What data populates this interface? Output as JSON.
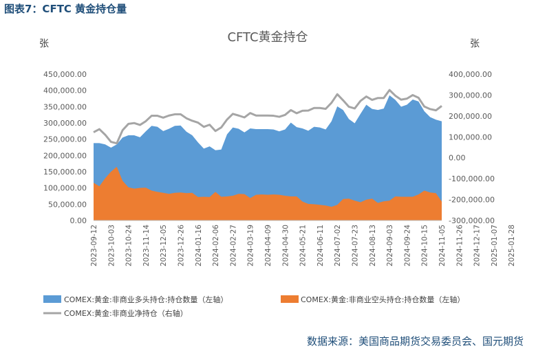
{
  "header": "图表7：CFTC 黄金持仓量",
  "source": "数据来源：美国商品期货交易委员会、国元期货",
  "chart_data": {
    "type": "area",
    "title": "CFTC黄金持仓",
    "left_unit": "张",
    "right_unit": "张",
    "y_left_ticks": [
      "450,000.00",
      "400,000.00",
      "350,000.00",
      "300,000.00",
      "250,000.00",
      "200,000.00",
      "150,000.00",
      "100,000.00",
      "50,000.00",
      "0.00"
    ],
    "y_right_ticks": [
      "400,000.00",
      "300,000.00",
      "200,000.00",
      "100,000.00",
      "0.00",
      "-100,000.00",
      "-200,000.00",
      "-300,000.00"
    ],
    "ylim_left": [
      0,
      450000
    ],
    "ylim_right": [
      -300000,
      400000
    ],
    "x_tick_labels": [
      "2023-09-12",
      "2023-10-03",
      "2023-10-24",
      "2023-11-14",
      "2023-12-05",
      "2023-12-26",
      "2024-01-16",
      "2024-02-06",
      "2024-02-27",
      "2024-03-19",
      "2024-04-09",
      "2024-04-30",
      "2024-05-21",
      "2024-06-11",
      "2024-07-02",
      "2024-07-23",
      "2024-08-13",
      "2024-09-03",
      "2024-09-24",
      "2024-10-15",
      "2024-11-05",
      "2024-11-26",
      "2024-12-17",
      "2025-01-07",
      "2025-01-28"
    ],
    "legend": [
      "COMEX:黄金:非商业多头持仓:持仓数量（左轴）",
      "COMEX:黄金:非商业空头持仓:持仓数量（左轴）",
      "COMEX:黄金:非商业净持仓（右轴）"
    ],
    "colors": {
      "long": "#5b9bd5",
      "short": "#ed7d31",
      "net": "#a5a5a5"
    },
    "series": [
      {
        "name": "COMEX:黄金:非商业多头持仓:持仓数量（左轴）",
        "axis": "left",
        "values": [
          238000,
          238000,
          234000,
          224000,
          234000,
          255000,
          262000,
          262000,
          256000,
          274000,
          291000,
          288000,
          275000,
          282000,
          291000,
          292000,
          273000,
          262000,
          240000,
          221000,
          228000,
          216000,
          218000,
          265000,
          286000,
          282000,
          271000,
          283000,
          281000,
          281000,
          281000,
          280000,
          274000,
          280000,
          301000,
          287000,
          283000,
          276000,
          288000,
          286000,
          280000,
          305000,
          351000,
          340000,
          312000,
          299000,
          328000,
          356000,
          343000,
          340000,
          344000,
          385000,
          371000,
          350000,
          356000,
          372000,
          366000,
          336000,
          318000,
          310000,
          305000
        ]
      },
      {
        "name": "COMEX:黄金:非商业空头持仓:持仓数量（左轴）",
        "axis": "left",
        "values": [
          116000,
          105000,
          130000,
          150000,
          165000,
          122000,
          102000,
          98000,
          100000,
          101000,
          92000,
          88000,
          85000,
          82000,
          85000,
          86000,
          84000,
          85000,
          72000,
          73000,
          72000,
          88000,
          73000,
          74000,
          76000,
          82000,
          81000,
          69000,
          79000,
          80000,
          79000,
          80000,
          79000,
          76000,
          74000,
          74000,
          58000,
          51000,
          50000,
          48000,
          46000,
          42000,
          48000,
          66000,
          67000,
          61000,
          56000,
          64000,
          67000,
          54000,
          59000,
          61000,
          74000,
          73000,
          73000,
          73000,
          80000,
          92000,
          86000,
          84000,
          58000
        ]
      },
      {
        "name": "COMEX:黄金:非商业净持仓（右轴）",
        "axis": "right",
        "values": [
          122000,
          137000,
          110000,
          76000,
          69000,
          132000,
          162000,
          166000,
          157000,
          175000,
          201000,
          201000,
          192000,
          202000,
          208000,
          208000,
          189000,
          177000,
          168000,
          148000,
          158000,
          128000,
          145000,
          183000,
          210000,
          202000,
          193000,
          214000,
          202000,
          202000,
          202000,
          201000,
          196000,
          205000,
          228000,
          213000,
          225000,
          226000,
          238000,
          238000,
          234000,
          263000,
          304000,
          275000,
          244000,
          236000,
          272000,
          293000,
          277000,
          286000,
          286000,
          324000,
          297000,
          278000,
          283000,
          300000,
          287000,
          245000,
          233000,
          227000,
          248000
        ]
      }
    ]
  }
}
